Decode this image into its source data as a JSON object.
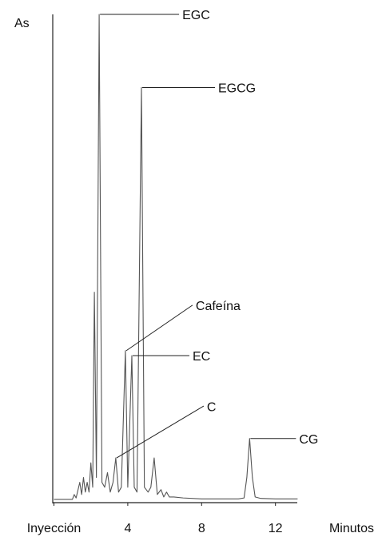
{
  "chart_data": {
    "type": "line",
    "x_label": "Minutos",
    "y_label": "As",
    "xlim": [
      0,
      13.2
    ],
    "ylim": [
      0,
      100
    ],
    "xticks": [
      {
        "value": 0,
        "label": "Inyección"
      },
      4,
      8,
      12
    ],
    "series": [
      {
        "color": "#555555",
        "x": [
          0,
          1.0,
          1.1,
          1.2,
          1.4,
          1.5,
          1.6,
          1.7,
          1.8,
          1.9,
          2.0,
          2.1,
          2.19,
          2.3,
          2.45,
          2.6,
          2.75,
          2.9,
          3.05,
          3.2,
          3.35,
          3.5,
          3.65,
          3.87,
          4.0,
          4.22,
          4.35,
          4.5,
          4.74,
          4.9,
          5.1,
          5.25,
          5.43,
          5.6,
          5.8,
          5.95,
          6.1,
          6.25,
          6.5,
          7,
          8,
          9,
          10,
          10.3,
          10.45,
          10.6,
          10.75,
          10.9,
          11.2,
          12,
          13.2
        ],
        "values": [
          0.5,
          0.5,
          1.5,
          0.8,
          4,
          1.5,
          5,
          2,
          4,
          2,
          8,
          3,
          43,
          5,
          100,
          4,
          3,
          6,
          2,
          4,
          9,
          2,
          3,
          31,
          3,
          30,
          3,
          2,
          85,
          3,
          2,
          3,
          9,
          1.5,
          2.5,
          1,
          2,
          1,
          1,
          0.8,
          0.6,
          0.6,
          0.6,
          0.8,
          5,
          13,
          5,
          1,
          0.7,
          0.6,
          0.6
        ]
      }
    ],
    "annotations": [
      {
        "text": "EGC",
        "x": 2.45,
        "y": 100
      },
      {
        "text": "EGCG",
        "x": 4.74,
        "y": 85
      },
      {
        "text": "Cafeína",
        "x": 3.87,
        "y": 31
      },
      {
        "text": "EC",
        "x": 4.22,
        "y": 30
      },
      {
        "text": "C",
        "x": 3.35,
        "y": 9
      },
      {
        "text": "CG",
        "x": 10.6,
        "y": 13
      }
    ]
  }
}
